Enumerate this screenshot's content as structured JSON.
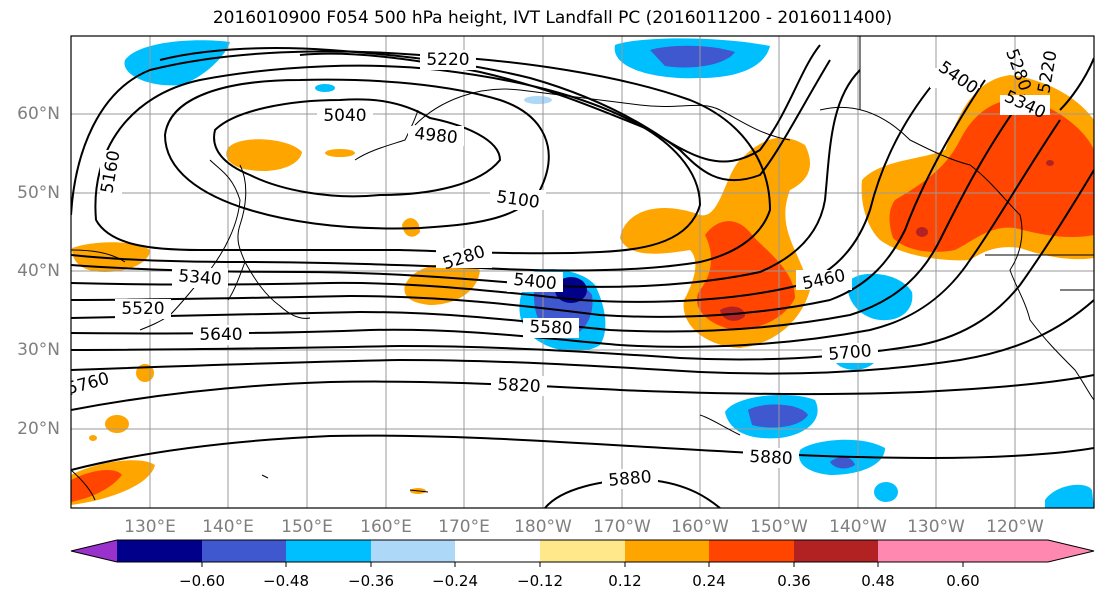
{
  "title": "2016010900 F054 500 hPa height, IVT Landfall PC (2016011200 - 2016011400)",
  "lat_ticks": [
    "60°N",
    "50°N",
    "40°N",
    "30°N",
    "20°N"
  ],
  "lon_ticks": [
    "130°E",
    "140°E",
    "150°E",
    "160°E",
    "170°E",
    "180°W",
    "170°W",
    "160°W",
    "150°W",
    "140°W",
    "130°W",
    "120°W"
  ],
  "contour_labels": [
    "5220",
    "5040",
    "4980",
    "5160",
    "5100",
    "5280",
    "5340",
    "5400",
    "5520",
    "5580",
    "5640",
    "5460",
    "5700",
    "5820",
    "5760",
    "5880",
    "5880",
    "5400",
    "5340",
    "5280",
    "5220"
  ],
  "colorbar": {
    "colors": [
      "#9932cc",
      "#00008b",
      "#3f57cf",
      "#00bfff",
      "#add8f8",
      "#ffffff",
      "#ffe88a",
      "#ffa500",
      "#ff4500",
      "#b22222",
      "#ff88b0"
    ],
    "tick_labels": [
      "−0.60",
      "−0.48",
      "−0.36",
      "−0.24",
      "−0.12",
      "0.12",
      "0.24",
      "0.36",
      "0.48",
      "0.60"
    ]
  }
}
